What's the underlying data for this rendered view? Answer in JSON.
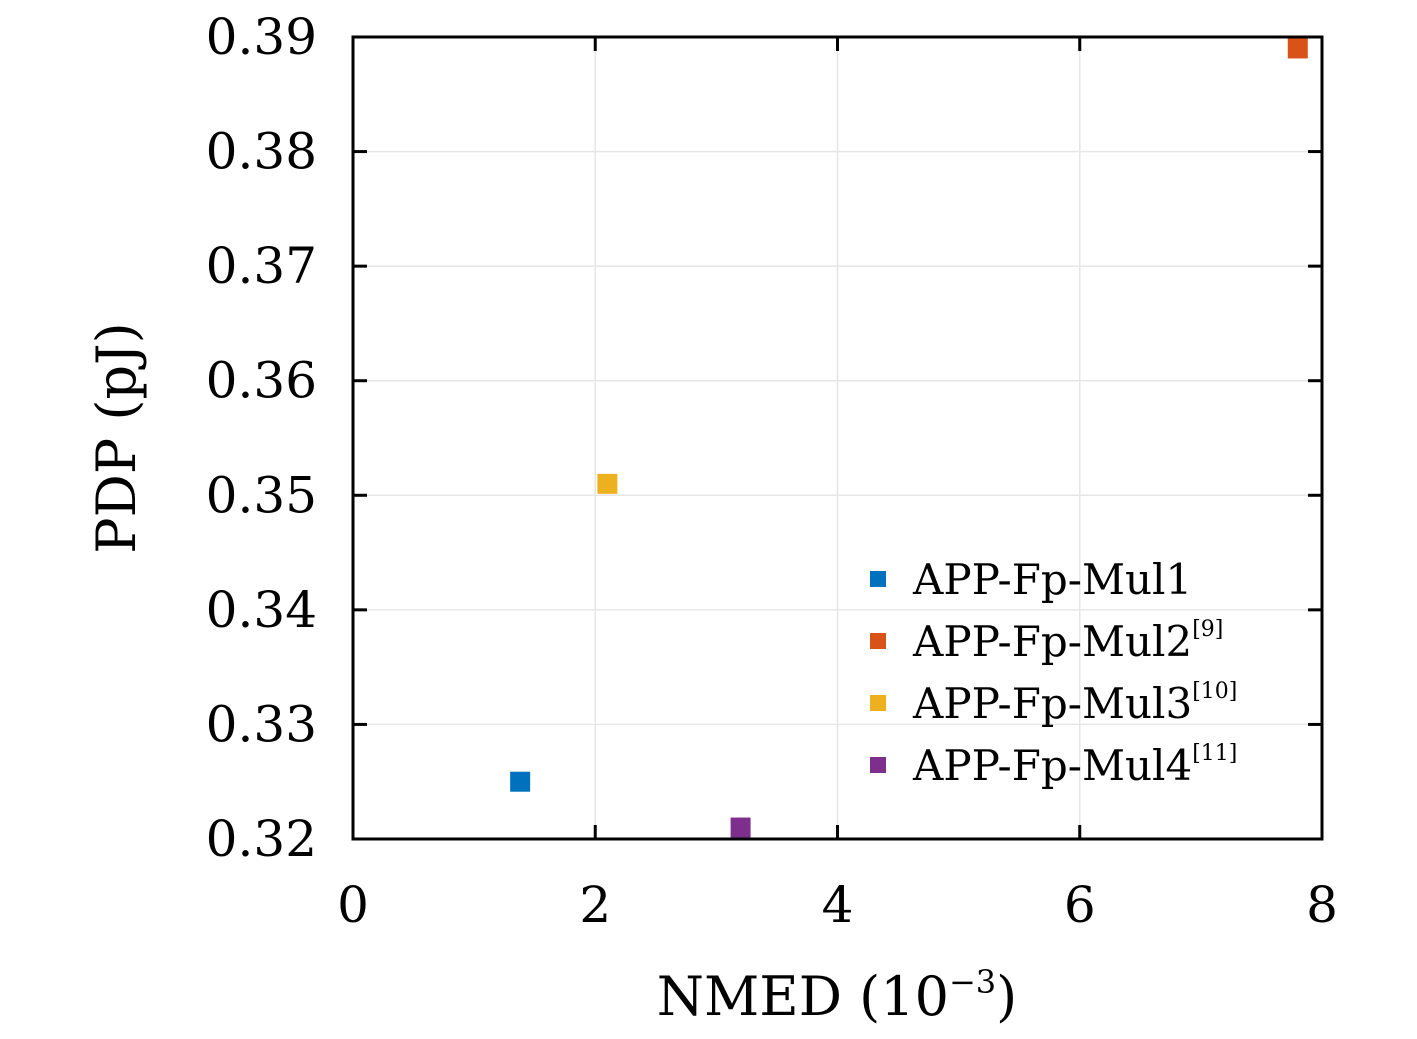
{
  "chart_data": {
    "type": "scatter",
    "xlabel": {
      "text": "NMED (10",
      "superscript": "−3",
      "suffix": ")"
    },
    "ylabel": "PDP (pJ)",
    "xlim": [
      0,
      8
    ],
    "ylim": [
      0.32,
      0.39
    ],
    "xticks": [
      0,
      2,
      4,
      6,
      8
    ],
    "xtick_labels": [
      "0",
      "2",
      "4",
      "6",
      "8"
    ],
    "yticks": [
      0.32,
      0.33,
      0.34,
      0.35,
      0.36,
      0.37,
      0.38,
      0.39
    ],
    "ytick_labels": [
      "0.32",
      "0.33",
      "0.34",
      "0.35",
      "0.36",
      "0.37",
      "0.38",
      "0.39"
    ],
    "grid": true,
    "legend_position": "lower-right",
    "series": [
      {
        "name": "APP-Fp-Mul1",
        "ref": "",
        "color": "#0072BD",
        "marker": "square",
        "x": [
          1.38
        ],
        "y": [
          0.325
        ]
      },
      {
        "name": "APP-Fp-Mul2",
        "ref": "[9]",
        "color": "#D95319",
        "marker": "square",
        "x": [
          7.8
        ],
        "y": [
          0.389
        ]
      },
      {
        "name": "APP-Fp-Mul3",
        "ref": "[10]",
        "color": "#EDB120",
        "marker": "square",
        "x": [
          2.1
        ],
        "y": [
          0.351
        ]
      },
      {
        "name": "APP-Fp-Mul4",
        "ref": "[11]",
        "color": "#7E2F8E",
        "marker": "square",
        "x": [
          3.2
        ],
        "y": [
          0.321
        ]
      }
    ]
  }
}
